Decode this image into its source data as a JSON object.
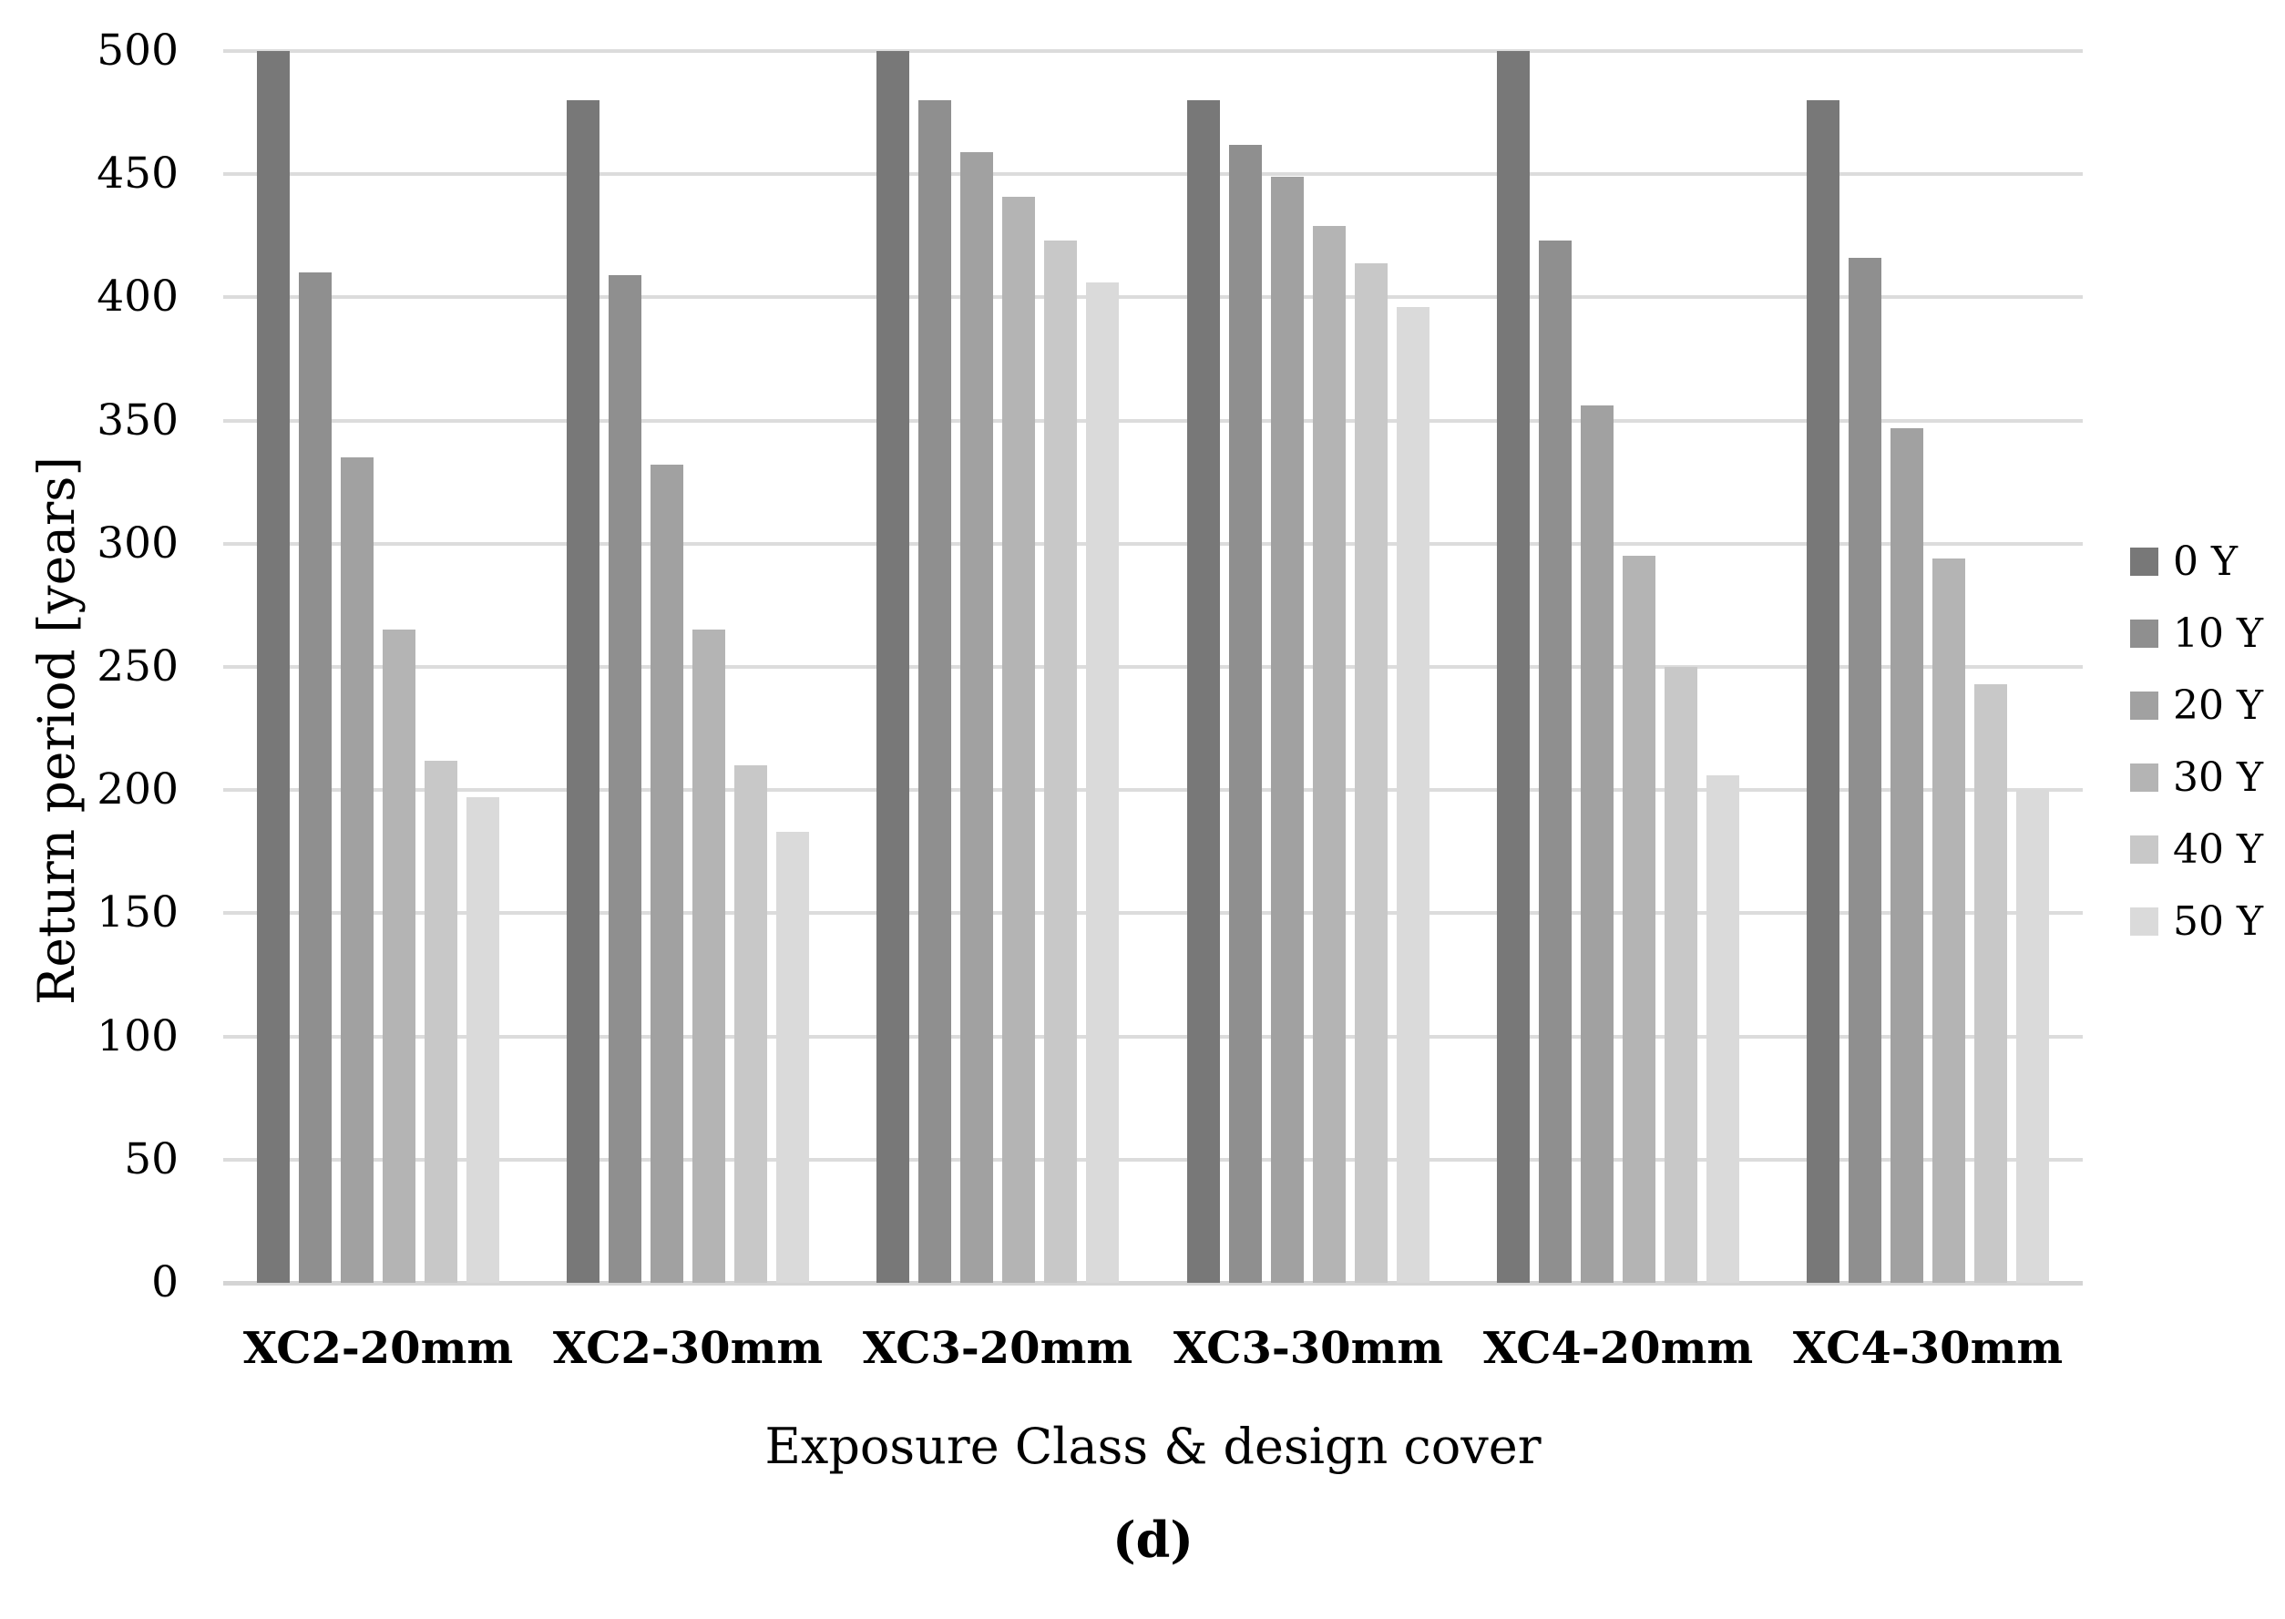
{
  "figure": {
    "caption": "(d)"
  },
  "chart_data": {
    "type": "bar",
    "title": "",
    "xlabel": "Exposure Class & design cover",
    "ylabel": "Return period [years]",
    "ylim": [
      0,
      500
    ],
    "yticks": [
      0,
      50,
      100,
      150,
      200,
      250,
      300,
      350,
      400,
      450,
      500
    ],
    "grid": true,
    "legend_position": "right",
    "categories": [
      "XC2-20mm",
      "XC2-30mm",
      "XC3-20mm",
      "XC3-30mm",
      "XC4-20mm",
      "XC4-30mm"
    ],
    "series": [
      {
        "name": "0 Y",
        "color": "#787878",
        "values": [
          500,
          480,
          500,
          480,
          500,
          480
        ]
      },
      {
        "name": "10 Y",
        "color": "#8f8f8f",
        "values": [
          410,
          409,
          480,
          462,
          423,
          416
        ]
      },
      {
        "name": "20 Y",
        "color": "#a1a1a1",
        "values": [
          335,
          332,
          459,
          449,
          356,
          347
        ]
      },
      {
        "name": "30 Y",
        "color": "#b4b4b4",
        "values": [
          265,
          265,
          441,
          429,
          295,
          294
        ]
      },
      {
        "name": "40 Y",
        "color": "#c8c8c8",
        "values": [
          212,
          210,
          423,
          414,
          250,
          243
        ]
      },
      {
        "name": "50 Y",
        "color": "#dadada",
        "values": [
          197,
          183,
          406,
          396,
          206,
          200
        ]
      }
    ],
    "gridline_color": "#dcdcdc",
    "axis_line_color": "#d4d4d4",
    "background_color": "#ffffff"
  }
}
